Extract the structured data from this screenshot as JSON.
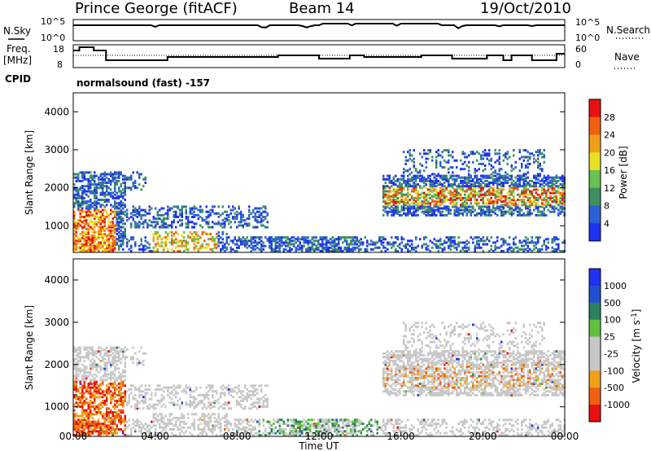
{
  "header": {
    "station": "Prince George (fitACF)",
    "beam": "Beam 14",
    "date": "19/Oct/2010"
  },
  "side_labels": {
    "nsky": "N.Sky",
    "freq_line1": "Freq.",
    "freq_line2": "[MHz]",
    "cpid": "CPID",
    "nsearch": "N.Search",
    "nave": "Nave",
    "nsky_top": "10^5",
    "nsky_bottom": "10^0",
    "nsearch_top": "10^5",
    "nsearch_bottom": "10^0",
    "freq_top": "18",
    "freq_bottom": "8",
    "nave_top": "60",
    "nave_bottom": "0"
  },
  "cpid_text": "normalsound (fast) -157",
  "colors": {
    "power": [
      "#1e30f0",
      "#2d5fd8",
      "#3c9060",
      "#6ac050",
      "#e8e020",
      "#f0a018",
      "#f06010",
      "#e81010"
    ],
    "velocity": [
      "#e81010",
      "#f06010",
      "#f0a018",
      "#c8c8c8",
      "#c8c8c8",
      "#60c040",
      "#2d8060",
      "#2050d0",
      "#1e30f0"
    ]
  },
  "chart_data": [
    {
      "type": "heatmap",
      "name": "power-panel",
      "ylabel": "Slant Range [km]",
      "ylim": [
        300,
        4500
      ],
      "yticks": [
        "1000",
        "2000",
        "3000",
        "4000"
      ],
      "colorbar_label": "Power [dB]",
      "colorbar_ticks": [
        "4",
        "8",
        "12",
        "16",
        "20",
        "24",
        "28"
      ],
      "xlim_hours": [
        0,
        24
      ]
    },
    {
      "type": "heatmap",
      "name": "velocity-panel",
      "ylabel": "Slant Range [km]",
      "ylim": [
        300,
        4500
      ],
      "yticks": [
        "1000",
        "2000",
        "3000",
        "4000"
      ],
      "colorbar_label": "Velocity [m s",
      "colorbar_label_sup": "-1",
      "colorbar_label_end": "]",
      "colorbar_ticks": [
        "1000",
        "500",
        "100",
        "25",
        "-25",
        "-100",
        "-500",
        "-1000"
      ],
      "xlim_hours": [
        0,
        24
      ]
    }
  ],
  "x_axis": {
    "ticks": [
      "00:00",
      "04:00",
      "08:00",
      "12:00",
      "16:00",
      "20:00",
      "00:00"
    ],
    "label": "Time UT"
  }
}
